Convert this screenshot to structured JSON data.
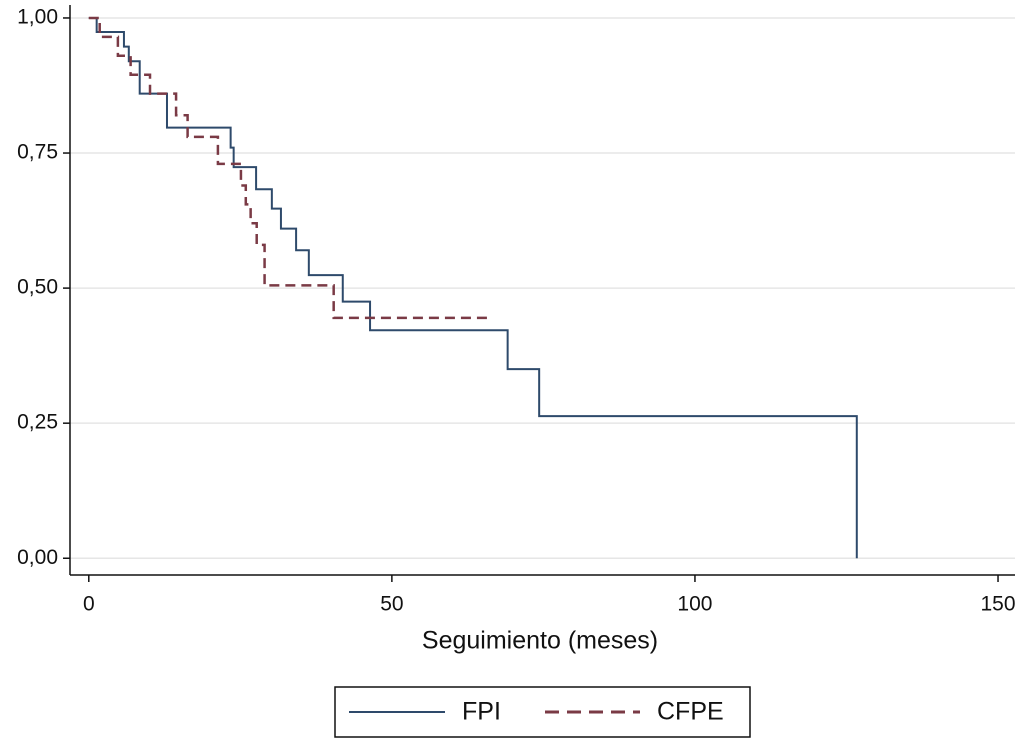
{
  "chart_data": {
    "type": "step",
    "xlabel": "Seguimiento (meses)",
    "xlim": [
      -3.1,
      152.8
    ],
    "ylim": [
      -0.031,
      1.024
    ],
    "xticks": [
      0,
      50,
      100,
      150
    ],
    "yticks": [
      {
        "value": 0,
        "label": "0,00"
      },
      {
        "value": 0.25,
        "label": "0,25"
      },
      {
        "value": 0.5,
        "label": "0,50"
      },
      {
        "value": 0.75,
        "label": "0,75"
      },
      {
        "value": 1,
        "label": "1,00"
      }
    ],
    "grid": true,
    "series": [
      {
        "name": "FPI",
        "color": "#2e4a6b",
        "dash": false,
        "x": [
          0,
          1.3,
          5.8,
          6.6,
          8.4,
          12.9,
          23.4,
          23.9,
          27.6,
          30.2,
          31.7,
          34.2,
          36.3,
          41.9,
          46.4,
          69.1,
          74.3,
          126.7
        ],
        "values": [
          1.0,
          0.974,
          0.947,
          0.92,
          0.86,
          0.797,
          0.76,
          0.724,
          0.683,
          0.647,
          0.61,
          0.57,
          0.524,
          0.475,
          0.422,
          0.35,
          0.263,
          0
        ]
      },
      {
        "name": "CFPE",
        "color": "#7a3a45",
        "dash": true,
        "x": [
          0,
          1.8,
          4.8,
          6.9,
          10.1,
          14.4,
          16.3,
          21.3,
          25.1,
          25.9,
          26.7,
          27.7,
          29.0,
          40.4,
          66.5
        ],
        "values": [
          1.0,
          0.965,
          0.93,
          0.895,
          0.86,
          0.82,
          0.78,
          0.73,
          0.69,
          0.655,
          0.62,
          0.58,
          0.505,
          0.445,
          0.445
        ]
      }
    ]
  }
}
